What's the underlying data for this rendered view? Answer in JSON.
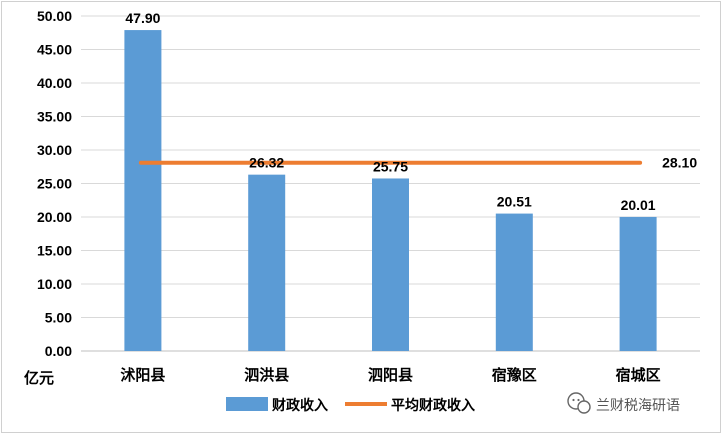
{
  "chart_data": {
    "type": "bar",
    "categories": [
      "沭阳县",
      "泗洪县",
      "泗阳县",
      "宿豫区",
      "宿城区"
    ],
    "series": [
      {
        "name": "财政收入",
        "kind": "bar",
        "values": [
          47.9,
          26.32,
          25.75,
          20.51,
          20.01
        ],
        "color": "#5B9BD5"
      },
      {
        "name": "平均财政收入",
        "kind": "line",
        "values": [
          28.1,
          28.1,
          28.1,
          28.1,
          28.1
        ],
        "color": "#ED7D31"
      }
    ],
    "data_labels": [
      "47.90",
      "26.32",
      "25.75",
      "20.51",
      "20.01"
    ],
    "average_label": "28.10",
    "ylim": [
      0,
      50
    ],
    "yticks": [
      "0.00",
      "5.00",
      "10.00",
      "15.00",
      "20.00",
      "25.00",
      "30.00",
      "35.00",
      "40.00",
      "45.00",
      "50.00"
    ],
    "ylabel": "亿元",
    "grid": true,
    "legend_position": "bottom"
  },
  "watermark": {
    "text": "兰财税海研语",
    "icon": "wechat-icon"
  }
}
